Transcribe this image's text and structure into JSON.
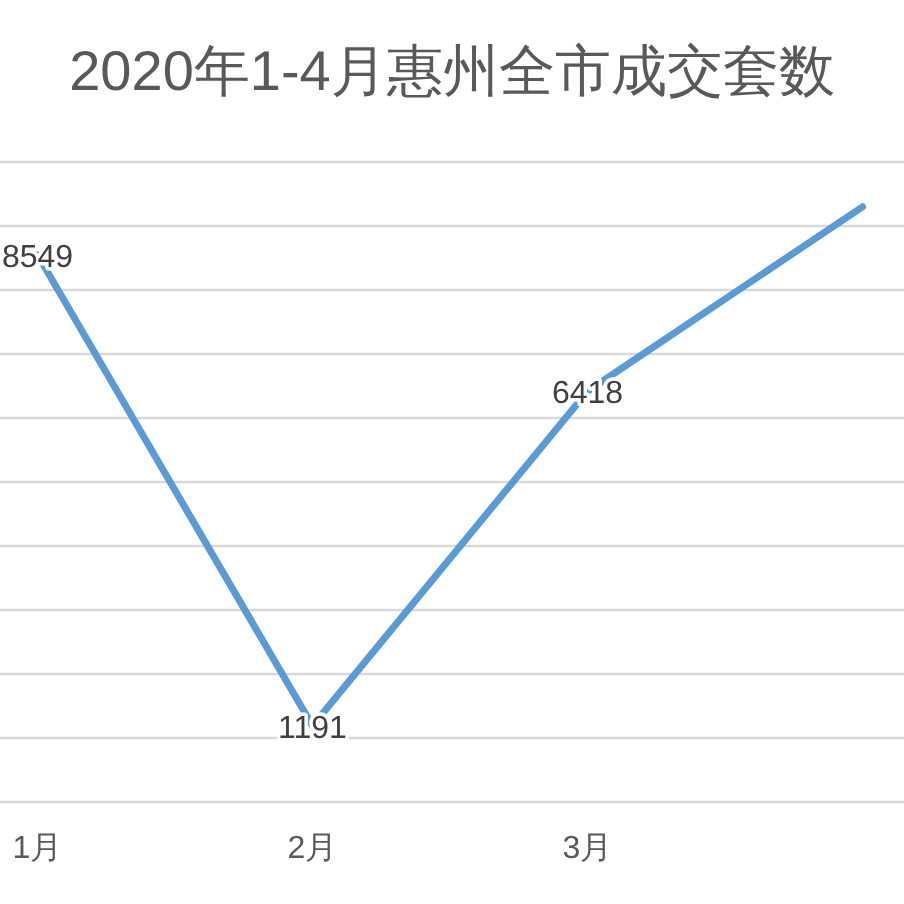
{
  "chart_data": {
    "type": "line",
    "title": "2020年1-4月惠州全市成交套数",
    "categories": [
      "1月",
      "2月",
      "3月",
      null
    ],
    "series": [
      {
        "color": "#5b9bd5",
        "values": [
          8549,
          1191,
          6418,
          9300
        ],
        "value_labels": [
          "8549",
          "1191",
          "6418",
          null
        ]
      }
    ],
    "ylim": [
      0,
      10000
    ],
    "yticks": [
      {
        "value": 0,
        "label": null
      },
      {
        "value": 1000,
        "label": null
      },
      {
        "value": 2000,
        "label": null
      },
      {
        "value": 3000,
        "label": null
      },
      {
        "value": 4000,
        "label": null
      },
      {
        "value": 5000,
        "label": null
      },
      {
        "value": 6000,
        "label": null
      },
      {
        "value": 7000,
        "label": null
      },
      {
        "value": 8000,
        "label": null
      },
      {
        "value": 9000,
        "label": null
      },
      {
        "value": 10000,
        "label": null
      }
    ],
    "grid": "y",
    "tick_labels": "x"
  }
}
